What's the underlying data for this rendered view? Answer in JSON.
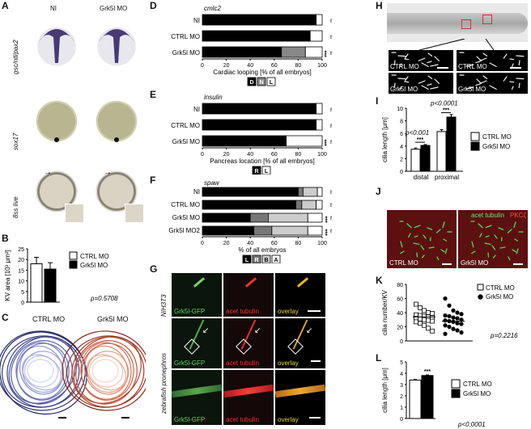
{
  "panels": {
    "A": {
      "label": "A",
      "col_ni": "NI",
      "col_mo": "Grk5l MO",
      "row1": "gsc/ntl/pax2",
      "row2": "sox17",
      "row3": "8ss live"
    },
    "B": {
      "label": "B",
      "ylabel": "KV area [10³ μm²]",
      "legend": [
        "CTRL MO",
        "Grk5l MO"
      ],
      "pvalue": "p=0.5708",
      "chart_data": {
        "type": "bar",
        "categories": [
          "CTRL MO",
          "Grk5l MO"
        ],
        "values": [
          18,
          15.5
        ],
        "errors": [
          3,
          3
        ],
        "ylim": [
          0,
          25
        ],
        "yticks": [
          "0",
          "5",
          "10",
          "15",
          "20",
          "25"
        ],
        "colors": [
          "#ffffff",
          "#000000"
        ]
      }
    },
    "C": {
      "label": "C",
      "left": "CTRL MO",
      "right": "Grk5l MO"
    },
    "D": {
      "label": "D",
      "title": "cmlc2",
      "xlabel": "Cardiac looping [% of all embryos]",
      "legend": [
        "D",
        "N",
        "L"
      ],
      "chart_data": {
        "type": "bar",
        "orientation": "horizontal-stacked",
        "categories": [
          "NI",
          "CTRL MO",
          "Grk5l MO"
        ],
        "series": [
          {
            "name": "D",
            "values": [
              95,
              90,
              66
            ],
            "color": "#000000"
          },
          {
            "name": "N",
            "values": [
              0,
              0,
              20
            ],
            "color": "#888888"
          },
          {
            "name": "L",
            "values": [
              5,
              10,
              14
            ],
            "color": "#ffffff"
          }
        ],
        "n": [
          "n=49",
          "n=38",
          "n=43"
        ],
        "signif": [
          "",
          "",
          "***"
        ],
        "xticks": [
          "0",
          "20",
          "40",
          "60",
          "80",
          "100"
        ]
      }
    },
    "E": {
      "label": "E",
      "title": "insulin",
      "xlabel": "Pancreas location [% of all embryos]",
      "legend": [
        "R",
        "L"
      ],
      "chart_data": {
        "type": "bar",
        "orientation": "horizontal-stacked",
        "categories": [
          "NI",
          "CTRL MO",
          "Grk5l MO"
        ],
        "series": [
          {
            "name": "R",
            "values": [
              95,
              95,
              70
            ],
            "color": "#000000"
          },
          {
            "name": "L",
            "values": [
              5,
              5,
              30
            ],
            "color": "#ffffff"
          }
        ],
        "n": [
          "n=49",
          "n=38",
          "n=43"
        ],
        "signif": [
          "",
          "",
          "***"
        ],
        "xticks": [
          "0",
          "20",
          "40",
          "60",
          "80",
          "100"
        ]
      }
    },
    "F": {
      "label": "F",
      "title": "spaw",
      "xlabel": "% of all embryos",
      "legend": [
        "L",
        "R",
        "B",
        "A"
      ],
      "chart_data": {
        "type": "bar",
        "orientation": "horizontal-stacked",
        "categories": [
          "NI",
          "CTRL MO",
          "Grk5l MO",
          "Grk5l MO2"
        ],
        "series": [
          {
            "name": "L",
            "values": [
              80,
              78,
              40,
              43
            ],
            "color": "#000000"
          },
          {
            "name": "R",
            "values": [
              4,
              5,
              15,
              15
            ],
            "color": "#777777"
          },
          {
            "name": "B",
            "values": [
              12,
              12,
              33,
              30
            ],
            "color": "#cccccc"
          },
          {
            "name": "A",
            "values": [
              4,
              5,
              12,
              12
            ],
            "color": "#ffffff"
          }
        ],
        "n": [
          "n=182",
          "n=169",
          "n=186",
          "n=114"
        ],
        "signif": [
          "",
          "",
          "***",
          "***"
        ],
        "xticks": [
          "0",
          "20",
          "40",
          "60",
          "80",
          "100"
        ]
      }
    },
    "G": {
      "label": "G",
      "row1": "NIH3T3",
      "row23": "zebrafish pronephros",
      "cols": [
        "Grk5l-GFP",
        "acet tubulin",
        "overlay"
      ]
    },
    "H": {
      "label": "H",
      "tiles": [
        "CTRL MO",
        "CTRL MO",
        "Grk5l MO",
        "Grk5l MO"
      ]
    },
    "I": {
      "label": "I",
      "ylabel": "cilia length [μm]",
      "legend": [
        "CTRL MO",
        "Grk5l MO"
      ],
      "p1": "p<0.001",
      "p2": "p<0.0001",
      "star1": "***",
      "star2": "***",
      "chart_data": {
        "type": "bar",
        "categories": [
          "distal",
          "proximal"
        ],
        "series": [
          {
            "name": "CTRL MO",
            "values": [
              3.5,
              6.3
            ],
            "errors": [
              0.2,
              0.3
            ],
            "color": "#ffffff"
          },
          {
            "name": "Grk5l MO",
            "values": [
              4.1,
              8.6
            ],
            "errors": [
              0.15,
              0.4
            ],
            "color": "#000000"
          }
        ],
        "ylim": [
          0,
          10
        ],
        "yticks": [
          "0",
          "2",
          "4",
          "6",
          "8",
          "10"
        ]
      }
    },
    "J": {
      "label": "J",
      "markers": [
        "acet tubulin",
        "PKCζ"
      ],
      "left": "CTRL MO",
      "right": "Grk5l MO"
    },
    "K": {
      "label": "K",
      "ylabel": "cilia number/KV",
      "legend": [
        "CTRL MO",
        "Grk5l MO"
      ],
      "pvalue": "p=0.2216",
      "chart_data": {
        "type": "scatter",
        "series": [
          {
            "name": "CTRL MO",
            "values": [
              52,
              47,
              43,
              40,
              39,
              37,
              36,
              35,
              34,
              33,
              32,
              31,
              30,
              29,
              28,
              27,
              25,
              22,
              18,
              14
            ],
            "mean": 34,
            "marker": "open-square"
          },
          {
            "name": "Grk5l MO",
            "values": [
              60,
              50,
              43,
              40,
              38,
              36,
              35,
              33,
              32,
              30,
              29,
              28,
              27,
              25,
              24,
              22,
              20,
              17,
              15,
              12,
              10
            ],
            "mean": 28,
            "marker": "filled-circle"
          }
        ],
        "ylim": [
          0,
          80
        ],
        "yticks": [
          "0",
          "20",
          "40",
          "60",
          "80"
        ]
      }
    },
    "L": {
      "label": "L",
      "ylabel": "cilia length [μm]",
      "legend": [
        "CTRL MO",
        "Grk5l MO"
      ],
      "pvalue": "p<0.0001",
      "star": "***",
      "chart_data": {
        "type": "bar",
        "categories": [
          "CTRL MO",
          "Grk5l MO"
        ],
        "values": [
          3.4,
          3.8
        ],
        "errors": [
          0.05,
          0.05
        ],
        "ylim": [
          0,
          5
        ],
        "yticks": [
          "0",
          "1",
          "2",
          "3",
          "4",
          "5"
        ],
        "colors": [
          "#ffffff",
          "#000000"
        ]
      }
    }
  }
}
